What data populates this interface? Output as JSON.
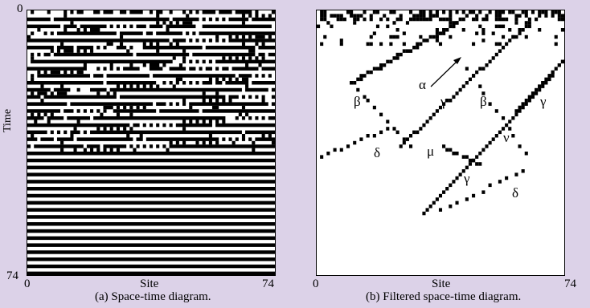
{
  "figure": {
    "y_axis_label": "Time",
    "y_ticks": [
      "0",
      "74"
    ],
    "panels": [
      {
        "id": "a",
        "caption": "(a) Space-time diagram.",
        "x_axis_label": "Site",
        "x_ticks": [
          "0",
          "74"
        ]
      },
      {
        "id": "b",
        "caption": "(b) Filtered space-time diagram.",
        "x_axis_label": "Site",
        "x_ticks": [
          "0",
          "74"
        ],
        "annotations": [
          {
            "key": "alpha",
            "text": "α"
          },
          {
            "key": "beta_left",
            "text": "β"
          },
          {
            "key": "gamma_left",
            "text": "γ"
          },
          {
            "key": "beta_right",
            "text": "β"
          },
          {
            "key": "gamma_right",
            "text": "γ"
          },
          {
            "key": "nu",
            "text": "ν"
          },
          {
            "key": "delta_left",
            "text": "δ"
          },
          {
            "key": "mu",
            "text": "μ"
          },
          {
            "key": "gamma_low",
            "text": "γ"
          },
          {
            "key": "delta_right",
            "text": "δ"
          }
        ]
      }
    ],
    "colors": {
      "background": "#dcd2e8",
      "cell": "#000000",
      "panel": "#ffffff"
    }
  }
}
